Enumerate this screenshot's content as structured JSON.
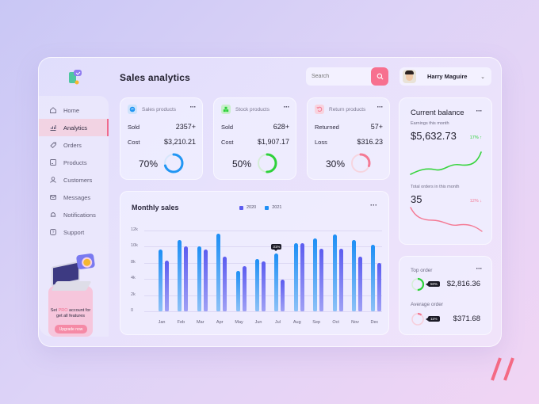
{
  "header": {
    "title": "Sales analytics",
    "search": {
      "placeholder": "Search",
      "value": ""
    },
    "user": {
      "name": "Harry Maguire"
    }
  },
  "sidebar": {
    "items": [
      {
        "label": "Home",
        "icon": "home-icon",
        "active": false
      },
      {
        "label": "Analytics",
        "icon": "analytics-icon",
        "active": true
      },
      {
        "label": "Orders",
        "icon": "tag-icon",
        "active": false
      },
      {
        "label": "Products",
        "icon": "box-icon",
        "active": false
      },
      {
        "label": "Customers",
        "icon": "users-icon",
        "active": false
      },
      {
        "label": "Messages",
        "icon": "mail-icon",
        "active": false
      },
      {
        "label": "Notifications",
        "icon": "bell-icon",
        "active": false
      },
      {
        "label": "Support",
        "icon": "help-icon",
        "active": false
      }
    ],
    "promo": {
      "text_pre": "Set ",
      "text_highlight": "PRO",
      "text_post": " account for get all features",
      "button": "Upgrade now"
    }
  },
  "stats": [
    {
      "title": "Sales products",
      "icon": "sales-icon",
      "color": "#2196f3",
      "icon_bg": "#cfe3fb",
      "rows": [
        {
          "label": "Sold",
          "value": "2357+"
        },
        {
          "label": "Cost",
          "value": "$3,210.21"
        }
      ],
      "percent": "70%",
      "percent_value": 70
    },
    {
      "title": "Stock products",
      "icon": "stock-icon",
      "color": "#2ed13a",
      "icon_bg": "#c8efcb",
      "rows": [
        {
          "label": "Sold",
          "value": "628+"
        },
        {
          "label": "Cost",
          "value": "$1,907.17"
        }
      ],
      "percent": "50%",
      "percent_value": 50
    },
    {
      "title": "Return products",
      "icon": "return-icon",
      "color": "#f47a94",
      "icon_bg": "#f8d3de",
      "rows": [
        {
          "label": "Returned",
          "value": "57+"
        },
        {
          "label": "Loss",
          "value": "$316.23"
        }
      ],
      "percent": "30%",
      "percent_value": 30
    }
  ],
  "monthly_sales": {
    "title": "Monthly sales",
    "legend": [
      {
        "label": "2020",
        "color": "#5c5cf0"
      },
      {
        "label": "2021",
        "color": "#1e8ff5"
      }
    ],
    "tooltip": {
      "month": "Jul",
      "label": "31%"
    }
  },
  "chart_data": {
    "type": "bar",
    "title": "Monthly sales",
    "xlabel": "",
    "ylabel": "",
    "categories": [
      "Jan",
      "Feb",
      "Mar",
      "Apr",
      "May",
      "Jun",
      "Jul",
      "Aug",
      "Sep",
      "Oct",
      "Nov",
      "Dec"
    ],
    "y_tick_labels": [
      "12k",
      "10k",
      "8k",
      "4k",
      "2k",
      "0"
    ],
    "ylim": [
      0,
      12000
    ],
    "grid": true,
    "legend_position": "top",
    "series": [
      {
        "name": "2021",
        "color": "#1e8ff5",
        "values": [
          9200,
          10600,
          9600,
          11500,
          6000,
          7800,
          8600,
          10100,
          10800,
          11400,
          10600,
          9900
        ]
      },
      {
        "name": "2020",
        "color": "#5c5cf0",
        "values": [
          7500,
          9600,
          9200,
          8100,
          6700,
          7400,
          4700,
          10100,
          9300,
          9300,
          8100,
          7200
        ]
      }
    ],
    "annotations": [
      {
        "category": "Jul",
        "series": "2021",
        "text": "31%"
      }
    ]
  },
  "balance": {
    "title": "Current balance",
    "earnings_label": "Earnings this month",
    "earnings_value": "$5,632.73",
    "earnings_trend": "17% ↑",
    "earnings_color": "#2ed13a",
    "orders_label": "Total orders in this month",
    "orders_value": "35",
    "orders_trend": "12% ↓",
    "orders_color": "#f47a94"
  },
  "orders": {
    "top": {
      "label": "Top order",
      "badge": "50%",
      "value": "$2,816.36",
      "color": "#2ed13a",
      "percent_value": 50
    },
    "average": {
      "label": "Average order",
      "badge": "11%",
      "value": "$371.68",
      "color": "#f47a94",
      "percent_value": 11
    }
  }
}
